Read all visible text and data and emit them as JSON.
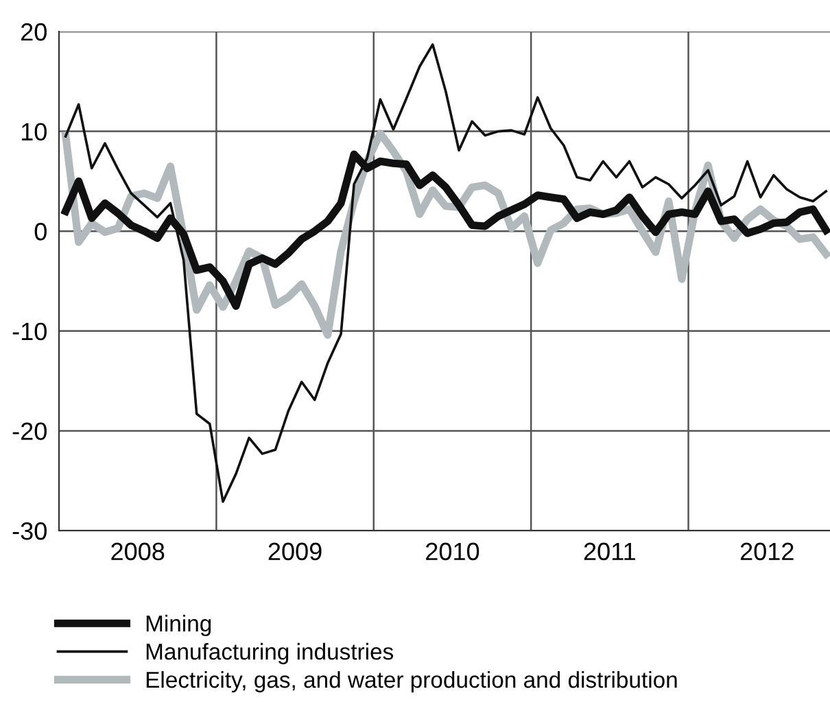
{
  "chart_data": {
    "type": "line",
    "x": [
      2008.042,
      2008.125,
      2008.208,
      2008.292,
      2008.375,
      2008.458,
      2008.542,
      2008.625,
      2008.708,
      2008.792,
      2008.875,
      2008.958,
      2009.042,
      2009.125,
      2009.208,
      2009.292,
      2009.375,
      2009.458,
      2009.542,
      2009.625,
      2009.708,
      2009.792,
      2009.875,
      2009.958,
      2010.042,
      2010.125,
      2010.208,
      2010.292,
      2010.375,
      2010.458,
      2010.542,
      2010.625,
      2010.708,
      2010.792,
      2010.875,
      2010.958,
      2011.042,
      2011.125,
      2011.208,
      2011.292,
      2011.375,
      2011.458,
      2011.542,
      2011.625,
      2011.708,
      2011.792,
      2011.875,
      2011.958,
      2012.042,
      2012.125,
      2012.208,
      2012.292,
      2012.375,
      2012.458,
      2012.542,
      2012.625,
      2012.708,
      2012.792,
      2012.875
    ],
    "series": [
      {
        "name": "Mining",
        "color": "#111111",
        "values": [
          2,
          5,
          1.3,
          2.8,
          1.8,
          0.6,
          0,
          -0.7,
          1.3,
          -0.3,
          -3.9,
          -3.6,
          -5,
          -7.5,
          -3.3,
          -2.7,
          -3.3,
          -2.2,
          -0.8,
          0,
          1,
          2.8,
          7.7,
          6.3,
          7,
          6.8,
          6.7,
          4.6,
          5.6,
          4.4,
          2.6,
          0.6,
          0.5,
          1.5,
          2.1,
          2.7,
          3.6,
          3.4,
          3.2,
          1.3,
          1.9,
          1.7,
          2.1,
          3.4,
          1.5,
          -0.1,
          1.7,
          1.9,
          1.7,
          4,
          1,
          1.2,
          -0.2,
          0.2,
          0.8,
          0.9,
          1.9,
          2.2,
          0.1
        ]
      },
      {
        "name": "Manufacturing industries",
        "color": "#111111",
        "values": [
          9.5,
          12.7,
          6.3,
          8.8,
          6.2,
          3.8,
          2.6,
          1.4,
          2.8,
          -2.9,
          -18.3,
          -19.3,
          -27.1,
          -24.3,
          -20.7,
          -22.3,
          -21.9,
          -18,
          -15.1,
          -16.9,
          -13.2,
          -10.3,
          4.7,
          7.3,
          13.2,
          10.2,
          13.3,
          16.5,
          18.7,
          14,
          8.1,
          11,
          9.6,
          10,
          10.1,
          9.7,
          13.4,
          10.3,
          8.6,
          5.4,
          5.1,
          7,
          5.4,
          7,
          4.4,
          5.4,
          4.7,
          3.3,
          4.6,
          6.1,
          2.6,
          3.5,
          7,
          3.4,
          5.6,
          4.2,
          3.4,
          3,
          4
        ]
      },
      {
        "name": "Electricity, gas, and water production and distribution",
        "color": "#b2b9bd",
        "values": [
          9.6,
          -1.1,
          0.8,
          -0.1,
          0.3,
          3.5,
          3.8,
          3.3,
          6.5,
          -0.5,
          -7.9,
          -5.4,
          -7.6,
          -5,
          -2,
          -2.7,
          -7.4,
          -6.6,
          -5.3,
          -7.5,
          -10.4,
          -2,
          3,
          7,
          9.8,
          8,
          6,
          1.7,
          4.1,
          2.5,
          2.4,
          4.4,
          4.6,
          3.8,
          0.3,
          1.5,
          -3.2,
          0.1,
          0.8,
          2.2,
          2.3,
          1.7,
          1.8,
          2.2,
          0,
          -2.1,
          3,
          -4.8,
          2,
          6.6,
          1,
          -0.7,
          1.2,
          2.2,
          1.1,
          0.5,
          -0.8,
          -0.6,
          -2.3
        ]
      }
    ],
    "xlim": [
      2008,
      2012.9
    ],
    "xticks": [
      {
        "value": 2008.5,
        "label": "2008"
      },
      {
        "value": 2009,
        "label": null
      },
      {
        "value": 2009.5,
        "label": "2009"
      },
      {
        "value": 2010,
        "label": null
      },
      {
        "value": 2010.5,
        "label": "2010"
      },
      {
        "value": 2011,
        "label": null
      },
      {
        "value": 2011.5,
        "label": "2011"
      },
      {
        "value": 2012,
        "label": null
      },
      {
        "value": 2012.5,
        "label": "2012"
      }
    ],
    "ylim": [
      -30,
      20
    ],
    "yticks": [
      -30,
      -20,
      -10,
      0,
      10,
      20
    ],
    "grid": true,
    "legend": "bottom"
  }
}
